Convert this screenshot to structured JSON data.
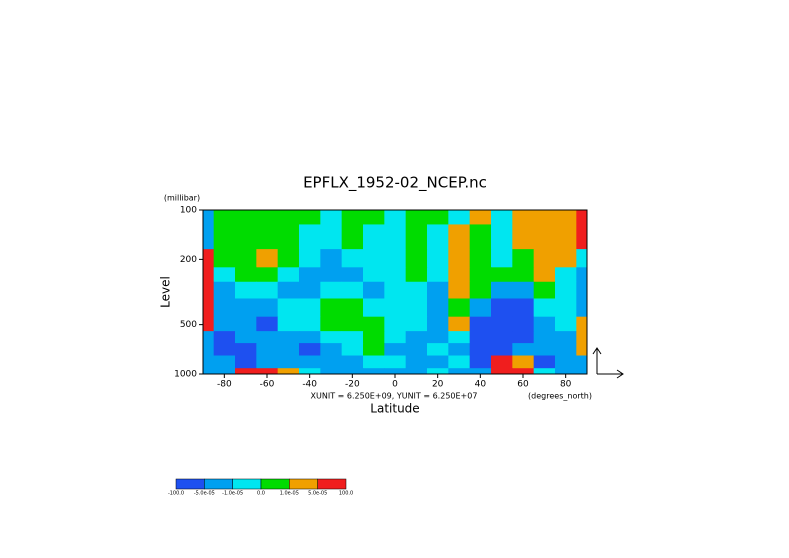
{
  "chart_data": {
    "type": "contour",
    "title": "EPFLX_1952-02_NCEP.nc",
    "y_unit": "(millibar)",
    "y_label": "Level",
    "x_label": "Latitude",
    "x_unit": "(degrees_north)",
    "vector_note": "XUNIT = 6.250E+09, YUNIT = 6.250E+07",
    "x": [
      -90,
      -80,
      -70,
      -60,
      -50,
      -40,
      -30,
      -20,
      -10,
      0,
      10,
      20,
      30,
      40,
      50,
      60,
      70,
      80,
      90
    ],
    "y": [
      100,
      150,
      200,
      250,
      300,
      400,
      500,
      600,
      700,
      850,
      1000
    ],
    "values": [
      [
        -3e-05,
        5e-06,
        5e-06,
        5e-06,
        5e-06,
        5e-06,
        -5e-06,
        5e-06,
        5e-06,
        -5e-06,
        5e-06,
        5e-06,
        -5e-06,
        3e-05,
        -5e-06,
        3e-05,
        3e-05,
        3e-05,
        0.0001
      ],
      [
        -3e-05,
        5e-06,
        5e-06,
        5e-06,
        5e-06,
        -5e-06,
        -5e-06,
        5e-06,
        -5e-06,
        -5e-06,
        5e-06,
        -5e-06,
        3e-05,
        5e-06,
        -5e-06,
        3e-05,
        3e-05,
        3e-05,
        0.0001
      ],
      [
        0.0001,
        5e-06,
        5e-06,
        3e-05,
        5e-06,
        -5e-06,
        -3e-05,
        -5e-06,
        -5e-06,
        -5e-06,
        5e-06,
        -5e-06,
        3e-05,
        5e-06,
        -5e-06,
        5e-06,
        3e-05,
        3e-05,
        -5e-06
      ],
      [
        0.0001,
        -5e-06,
        5e-06,
        5e-06,
        -5e-06,
        -3e-05,
        -3e-05,
        -3e-05,
        -5e-06,
        -5e-06,
        5e-06,
        -5e-06,
        3e-05,
        5e-06,
        5e-06,
        5e-06,
        3e-05,
        -5e-06,
        -3e-05
      ],
      [
        0.0001,
        -3e-05,
        -5e-06,
        -5e-06,
        -3e-05,
        -3e-05,
        -5e-06,
        -5e-06,
        -3e-05,
        -5e-06,
        -5e-06,
        -3e-05,
        3e-05,
        5e-06,
        -3e-05,
        -3e-05,
        5e-06,
        -5e-06,
        -3e-05
      ],
      [
        0.0001,
        -3e-05,
        -3e-05,
        -3e-05,
        -5e-06,
        -5e-06,
        5e-06,
        5e-06,
        -5e-06,
        -5e-06,
        -5e-06,
        -3e-05,
        5e-06,
        -3e-05,
        -0.0001,
        -0.0001,
        -5e-06,
        -5e-06,
        -3e-05
      ],
      [
        0.0001,
        -3e-05,
        -3e-05,
        -0.0001,
        -5e-06,
        -5e-06,
        5e-06,
        5e-06,
        5e-06,
        -5e-06,
        -5e-06,
        -3e-05,
        3e-05,
        -0.0001,
        -0.0001,
        -0.0001,
        -3e-05,
        -5e-06,
        3e-05
      ],
      [
        -3e-05,
        -0.0001,
        -3e-05,
        -3e-05,
        -3e-05,
        -3e-05,
        -5e-06,
        -5e-06,
        5e-06,
        -5e-06,
        -3e-05,
        -3e-05,
        -5e-06,
        -0.0001,
        -0.0001,
        -0.0001,
        -3e-05,
        -3e-05,
        3e-05
      ],
      [
        -3e-05,
        -0.0001,
        -0.0001,
        -3e-05,
        -3e-05,
        -0.0001,
        -3e-05,
        -5e-06,
        5e-06,
        -3e-05,
        -3e-05,
        -5e-06,
        -3e-05,
        -0.0001,
        -0.0001,
        -3e-05,
        -3e-05,
        -3e-05,
        3e-05
      ],
      [
        -3e-05,
        -3e-05,
        -0.0001,
        -3e-05,
        -3e-05,
        -3e-05,
        -3e-05,
        -3e-05,
        -5e-06,
        -5e-06,
        -3e-05,
        -3e-05,
        -5e-06,
        -0.0001,
        0.0001,
        3e-05,
        -0.0001,
        -3e-05,
        -3e-05
      ],
      [
        -3e-05,
        -3e-05,
        0.0001,
        0.0001,
        3e-05,
        -5e-06,
        -3e-05,
        -3e-05,
        -3e-05,
        -3e-05,
        -3e-05,
        -5e-06,
        -3e-05,
        -3e-05,
        0.0001,
        0.0001,
        -5e-06,
        -3e-05,
        -3e-05
      ]
    ],
    "xlim": [
      -90,
      90
    ],
    "xticks": [
      -80,
      -60,
      -40,
      -20,
      0,
      20,
      40,
      60,
      80
    ],
    "ylim": [
      100,
      1000
    ],
    "yticks": [
      100,
      200,
      500,
      1000
    ],
    "y_log": true,
    "y_reversed": true,
    "colorbar": {
      "levels": [
        {
          "value": -100,
          "label": "-100.0"
        },
        {
          "value": -5e-05,
          "label": "-5.0e-05"
        },
        {
          "value": -1e-05,
          "label": "-1.0e-05"
        },
        {
          "value": 0,
          "label": "0.0"
        },
        {
          "value": 1e-05,
          "label": "1.0e-05"
        },
        {
          "value": 5e-05,
          "label": "5.0e-05"
        },
        {
          "value": 100,
          "label": "100.0"
        }
      ],
      "colors": [
        "#1e50f0",
        "#00a0f0",
        "#00e6f0",
        "#00dc00",
        "#f0a000",
        "#f01e1e"
      ]
    }
  }
}
